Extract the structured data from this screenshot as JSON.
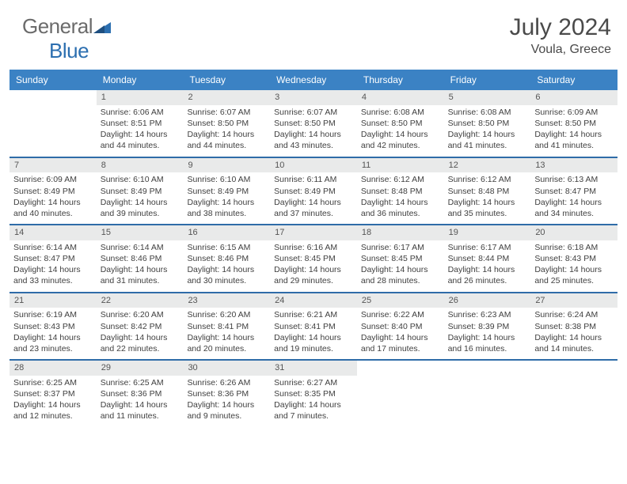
{
  "brand": {
    "name1": "General",
    "name2": "Blue"
  },
  "title": "July 2024",
  "location": "Voula, Greece",
  "colors": {
    "header_bg": "#3b82c4",
    "week_border": "#2f6ca8",
    "daynum_bg": "#e9eaea",
    "text": "#3f3f3f",
    "brand_gray": "#6b6b6b",
    "brand_blue": "#2c6fb0"
  },
  "day_headers": [
    "Sunday",
    "Monday",
    "Tuesday",
    "Wednesday",
    "Thursday",
    "Friday",
    "Saturday"
  ],
  "weeks": [
    [
      {
        "n": "",
        "empty": true
      },
      {
        "n": "1",
        "sr": "Sunrise: 6:06 AM",
        "ss": "Sunset: 8:51 PM",
        "dl1": "Daylight: 14 hours",
        "dl2": "and 44 minutes."
      },
      {
        "n": "2",
        "sr": "Sunrise: 6:07 AM",
        "ss": "Sunset: 8:50 PM",
        "dl1": "Daylight: 14 hours",
        "dl2": "and 44 minutes."
      },
      {
        "n": "3",
        "sr": "Sunrise: 6:07 AM",
        "ss": "Sunset: 8:50 PM",
        "dl1": "Daylight: 14 hours",
        "dl2": "and 43 minutes."
      },
      {
        "n": "4",
        "sr": "Sunrise: 6:08 AM",
        "ss": "Sunset: 8:50 PM",
        "dl1": "Daylight: 14 hours",
        "dl2": "and 42 minutes."
      },
      {
        "n": "5",
        "sr": "Sunrise: 6:08 AM",
        "ss": "Sunset: 8:50 PM",
        "dl1": "Daylight: 14 hours",
        "dl2": "and 41 minutes."
      },
      {
        "n": "6",
        "sr": "Sunrise: 6:09 AM",
        "ss": "Sunset: 8:50 PM",
        "dl1": "Daylight: 14 hours",
        "dl2": "and 41 minutes."
      }
    ],
    [
      {
        "n": "7",
        "sr": "Sunrise: 6:09 AM",
        "ss": "Sunset: 8:49 PM",
        "dl1": "Daylight: 14 hours",
        "dl2": "and 40 minutes."
      },
      {
        "n": "8",
        "sr": "Sunrise: 6:10 AM",
        "ss": "Sunset: 8:49 PM",
        "dl1": "Daylight: 14 hours",
        "dl2": "and 39 minutes."
      },
      {
        "n": "9",
        "sr": "Sunrise: 6:10 AM",
        "ss": "Sunset: 8:49 PM",
        "dl1": "Daylight: 14 hours",
        "dl2": "and 38 minutes."
      },
      {
        "n": "10",
        "sr": "Sunrise: 6:11 AM",
        "ss": "Sunset: 8:49 PM",
        "dl1": "Daylight: 14 hours",
        "dl2": "and 37 minutes."
      },
      {
        "n": "11",
        "sr": "Sunrise: 6:12 AM",
        "ss": "Sunset: 8:48 PM",
        "dl1": "Daylight: 14 hours",
        "dl2": "and 36 minutes."
      },
      {
        "n": "12",
        "sr": "Sunrise: 6:12 AM",
        "ss": "Sunset: 8:48 PM",
        "dl1": "Daylight: 14 hours",
        "dl2": "and 35 minutes."
      },
      {
        "n": "13",
        "sr": "Sunrise: 6:13 AM",
        "ss": "Sunset: 8:47 PM",
        "dl1": "Daylight: 14 hours",
        "dl2": "and 34 minutes."
      }
    ],
    [
      {
        "n": "14",
        "sr": "Sunrise: 6:14 AM",
        "ss": "Sunset: 8:47 PM",
        "dl1": "Daylight: 14 hours",
        "dl2": "and 33 minutes."
      },
      {
        "n": "15",
        "sr": "Sunrise: 6:14 AM",
        "ss": "Sunset: 8:46 PM",
        "dl1": "Daylight: 14 hours",
        "dl2": "and 31 minutes."
      },
      {
        "n": "16",
        "sr": "Sunrise: 6:15 AM",
        "ss": "Sunset: 8:46 PM",
        "dl1": "Daylight: 14 hours",
        "dl2": "and 30 minutes."
      },
      {
        "n": "17",
        "sr": "Sunrise: 6:16 AM",
        "ss": "Sunset: 8:45 PM",
        "dl1": "Daylight: 14 hours",
        "dl2": "and 29 minutes."
      },
      {
        "n": "18",
        "sr": "Sunrise: 6:17 AM",
        "ss": "Sunset: 8:45 PM",
        "dl1": "Daylight: 14 hours",
        "dl2": "and 28 minutes."
      },
      {
        "n": "19",
        "sr": "Sunrise: 6:17 AM",
        "ss": "Sunset: 8:44 PM",
        "dl1": "Daylight: 14 hours",
        "dl2": "and 26 minutes."
      },
      {
        "n": "20",
        "sr": "Sunrise: 6:18 AM",
        "ss": "Sunset: 8:43 PM",
        "dl1": "Daylight: 14 hours",
        "dl2": "and 25 minutes."
      }
    ],
    [
      {
        "n": "21",
        "sr": "Sunrise: 6:19 AM",
        "ss": "Sunset: 8:43 PM",
        "dl1": "Daylight: 14 hours",
        "dl2": "and 23 minutes."
      },
      {
        "n": "22",
        "sr": "Sunrise: 6:20 AM",
        "ss": "Sunset: 8:42 PM",
        "dl1": "Daylight: 14 hours",
        "dl2": "and 22 minutes."
      },
      {
        "n": "23",
        "sr": "Sunrise: 6:20 AM",
        "ss": "Sunset: 8:41 PM",
        "dl1": "Daylight: 14 hours",
        "dl2": "and 20 minutes."
      },
      {
        "n": "24",
        "sr": "Sunrise: 6:21 AM",
        "ss": "Sunset: 8:41 PM",
        "dl1": "Daylight: 14 hours",
        "dl2": "and 19 minutes."
      },
      {
        "n": "25",
        "sr": "Sunrise: 6:22 AM",
        "ss": "Sunset: 8:40 PM",
        "dl1": "Daylight: 14 hours",
        "dl2": "and 17 minutes."
      },
      {
        "n": "26",
        "sr": "Sunrise: 6:23 AM",
        "ss": "Sunset: 8:39 PM",
        "dl1": "Daylight: 14 hours",
        "dl2": "and 16 minutes."
      },
      {
        "n": "27",
        "sr": "Sunrise: 6:24 AM",
        "ss": "Sunset: 8:38 PM",
        "dl1": "Daylight: 14 hours",
        "dl2": "and 14 minutes."
      }
    ],
    [
      {
        "n": "28",
        "sr": "Sunrise: 6:25 AM",
        "ss": "Sunset: 8:37 PM",
        "dl1": "Daylight: 14 hours",
        "dl2": "and 12 minutes."
      },
      {
        "n": "29",
        "sr": "Sunrise: 6:25 AM",
        "ss": "Sunset: 8:36 PM",
        "dl1": "Daylight: 14 hours",
        "dl2": "and 11 minutes."
      },
      {
        "n": "30",
        "sr": "Sunrise: 6:26 AM",
        "ss": "Sunset: 8:36 PM",
        "dl1": "Daylight: 14 hours",
        "dl2": "and 9 minutes."
      },
      {
        "n": "31",
        "sr": "Sunrise: 6:27 AM",
        "ss": "Sunset: 8:35 PM",
        "dl1": "Daylight: 14 hours",
        "dl2": "and 7 minutes."
      },
      {
        "n": "",
        "empty": true
      },
      {
        "n": "",
        "empty": true
      },
      {
        "n": "",
        "empty": true
      }
    ]
  ]
}
